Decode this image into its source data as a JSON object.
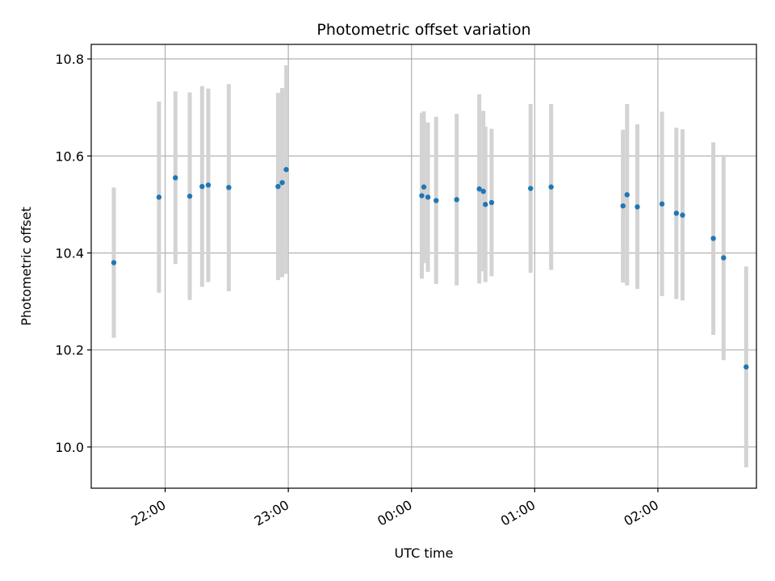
{
  "chart_data": {
    "type": "scatter",
    "title": "Photometric offset variation",
    "xlabel": "UTC time",
    "ylabel": "Photometric offset",
    "x_unit": "UTC hh:mm (date rollover after 23:59)",
    "x_range": [
      "21:24",
      "02:48"
    ],
    "ylim": [
      9.915,
      10.83
    ],
    "x_ticks": [
      "22:00",
      "23:00",
      "00:00",
      "01:00",
      "02:00"
    ],
    "y_ticks": [
      "10.0",
      "10.2",
      "10.4",
      "10.6",
      "10.8"
    ],
    "y_tick_values": [
      10.0,
      10.2,
      10.4,
      10.6,
      10.8
    ],
    "grid": true,
    "point_color": "#1f77b4",
    "errorbar_color": "#d3d3d3",
    "points": [
      {
        "x": "21:35",
        "y": 10.38,
        "lo": 10.225,
        "hi": 10.535
      },
      {
        "x": "21:57",
        "y": 10.515,
        "lo": 10.318,
        "hi": 10.712
      },
      {
        "x": "22:05",
        "y": 10.555,
        "lo": 10.377,
        "hi": 10.733
      },
      {
        "x": "22:12",
        "y": 10.517,
        "lo": 10.303,
        "hi": 10.731
      },
      {
        "x": "22:18",
        "y": 10.537,
        "lo": 10.33,
        "hi": 10.744
      },
      {
        "x": "22:21",
        "y": 10.54,
        "lo": 10.34,
        "hi": 10.739
      },
      {
        "x": "22:31",
        "y": 10.535,
        "lo": 10.321,
        "hi": 10.748
      },
      {
        "x": "22:55",
        "y": 10.537,
        "lo": 10.344,
        "hi": 10.73
      },
      {
        "x": "22:57",
        "y": 10.545,
        "lo": 10.35,
        "hi": 10.74
      },
      {
        "x": "22:59",
        "y": 10.572,
        "lo": 10.357,
        "hi": 10.787
      },
      {
        "x": "00:05",
        "y": 10.518,
        "lo": 10.347,
        "hi": 10.689
      },
      {
        "x": "00:06",
        "y": 10.536,
        "lo": 10.379,
        "hi": 10.692
      },
      {
        "x": "00:08",
        "y": 10.515,
        "lo": 10.361,
        "hi": 10.669
      },
      {
        "x": "00:12",
        "y": 10.508,
        "lo": 10.336,
        "hi": 10.681
      },
      {
        "x": "00:22",
        "y": 10.51,
        "lo": 10.333,
        "hi": 10.687
      },
      {
        "x": "00:33",
        "y": 10.532,
        "lo": 10.337,
        "hi": 10.727
      },
      {
        "x": "00:35",
        "y": 10.527,
        "lo": 10.362,
        "hi": 10.693
      },
      {
        "x": "00:36",
        "y": 10.5,
        "lo": 10.34,
        "hi": 10.66
      },
      {
        "x": "00:39",
        "y": 10.504,
        "lo": 10.352,
        "hi": 10.656
      },
      {
        "x": "00:58",
        "y": 10.533,
        "lo": 10.359,
        "hi": 10.707
      },
      {
        "x": "01:08",
        "y": 10.536,
        "lo": 10.365,
        "hi": 10.707
      },
      {
        "x": "01:43",
        "y": 10.497,
        "lo": 10.339,
        "hi": 10.654
      },
      {
        "x": "01:45",
        "y": 10.52,
        "lo": 10.333,
        "hi": 10.707
      },
      {
        "x": "01:50",
        "y": 10.495,
        "lo": 10.326,
        "hi": 10.665
      },
      {
        "x": "02:02",
        "y": 10.501,
        "lo": 10.311,
        "hi": 10.691
      },
      {
        "x": "02:09",
        "y": 10.482,
        "lo": 10.305,
        "hi": 10.658
      },
      {
        "x": "02:12",
        "y": 10.478,
        "lo": 10.302,
        "hi": 10.655
      },
      {
        "x": "02:27",
        "y": 10.43,
        "lo": 10.231,
        "hi": 10.628
      },
      {
        "x": "02:32",
        "y": 10.39,
        "lo": 10.179,
        "hi": 10.602
      },
      {
        "x": "02:43",
        "y": 10.165,
        "lo": 9.958,
        "hi": 10.372
      }
    ]
  }
}
